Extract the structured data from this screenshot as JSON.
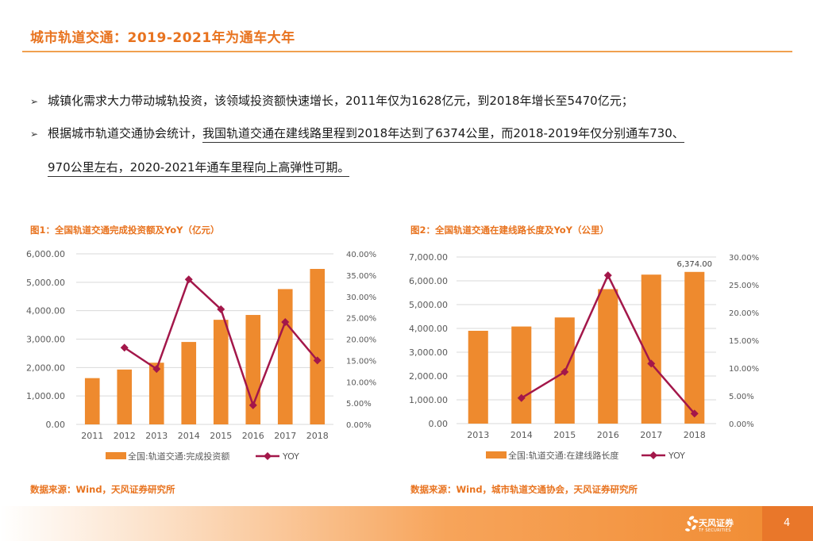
{
  "header": {
    "title": "城市轨道交通：2019-2021年为通车大年"
  },
  "bullets": [
    {
      "mark": "➢",
      "text": "城镇化需求大力带动城轨投资，该领域投资额快速增长，2011年仅为1628亿元，到2018年增长至5470亿元；"
    },
    {
      "mark": "➢",
      "text": "根据城市轨道交通协会统计，",
      "underlined": "我国轨道交通在建线路里程到2018年达到了6374公里，而2018-2019年仅分别通车730、"
    },
    {
      "text": "970公里左右，2020-2021年通车里程向上高弹性可期。"
    }
  ],
  "figures": [
    {
      "title": "图1：全国轨道交通完成投资额及YoY（亿元）",
      "source": "数据来源：Wind，天风证券研究所"
    },
    {
      "title": "图2：全国轨道交通在建线路长度及YoY（公里）",
      "source": "数据来源：Wind，城市轨道交通协会，天风证券研究所"
    }
  ],
  "chart_data": [
    {
      "type": "bar",
      "categories": [
        "2011",
        "2012",
        "2013",
        "2014",
        "2015",
        "2016",
        "2017",
        "2018"
      ],
      "series": [
        {
          "name": "全国:轨道交通:完成投资额",
          "type": "bar",
          "axis": "left",
          "color": "#EE8A2E",
          "values": [
            1628,
            1930,
            2170,
            2900,
            3680,
            3850,
            4760,
            5470
          ]
        },
        {
          "name": "YOY",
          "type": "line",
          "axis": "right",
          "color": "#A3174A",
          "values": [
            null,
            18.0,
            13.0,
            34.0,
            27.0,
            4.5,
            24.0,
            15.0
          ]
        }
      ],
      "left_axis": {
        "ylim": [
          0,
          6000
        ],
        "ticks": [
          "0.00",
          "1,000.00",
          "2,000.00",
          "3,000.00",
          "4,000.00",
          "5,000.00",
          "6,000.00"
        ]
      },
      "right_axis": {
        "ylim": [
          0,
          40
        ],
        "ticks": [
          "0.00%",
          "5.00%",
          "10.00%",
          "15.00%",
          "20.00%",
          "25.00%",
          "30.00%",
          "35.00%",
          "40.00%"
        ]
      },
      "grid": true,
      "legend": "bottom"
    },
    {
      "type": "bar",
      "categories": [
        "2013",
        "2014",
        "2015",
        "2016",
        "2017",
        "2018"
      ],
      "series": [
        {
          "name": "全国:轨道交通:在建线路长度",
          "type": "bar",
          "axis": "left",
          "color": "#EE8A2E",
          "values": [
            3900,
            4080,
            4460,
            5650,
            6260,
            6374
          ],
          "data_labels": [
            null,
            null,
            null,
            null,
            null,
            "6,374.00"
          ]
        },
        {
          "name": "YOY",
          "type": "line",
          "axis": "right",
          "color": "#A3174A",
          "values": [
            null,
            4.6,
            9.3,
            26.7,
            10.8,
            1.8
          ]
        }
      ],
      "left_axis": {
        "ylim": [
          0,
          7000
        ],
        "ticks": [
          "0.00",
          "1,000.00",
          "2,000.00",
          "3,000.00",
          "4,000.00",
          "5,000.00",
          "6,000.00",
          "7,000.00"
        ]
      },
      "right_axis": {
        "ylim": [
          0,
          30
        ],
        "ticks": [
          "0.00%",
          "5.00%",
          "10.00%",
          "15.00%",
          "20.00%",
          "25.00%",
          "30.00%"
        ]
      },
      "grid": true,
      "legend": "bottom"
    }
  ],
  "footer": {
    "brand": "天风证券",
    "brand_sub": "TF SECURITIES",
    "page": "4"
  },
  "colors": {
    "accent": "#E8731F",
    "bar": "#EE8A2E",
    "line": "#A3174A"
  }
}
